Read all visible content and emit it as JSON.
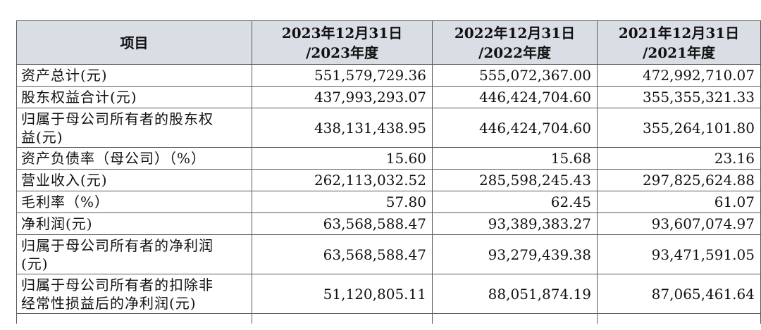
{
  "table": {
    "header": {
      "item": "项目",
      "col1_line1": "2023年12月31日",
      "col1_line2": "/2023年度",
      "col2_line1": "2022年12月31日",
      "col2_line2": "/2022年度",
      "col3_line1": "2021年12月31日",
      "col3_line2": "/2021年度"
    },
    "rows": [
      {
        "label": "资产总计(元)",
        "v2023": "551,579,729.36",
        "v2022": "555,072,367.00",
        "v2021": "472,992,710.07"
      },
      {
        "label": "股东权益合计(元)",
        "v2023": "437,993,293.07",
        "v2022": "446,424,704.60",
        "v2021": "355,355,321.33"
      },
      {
        "label_line1": "归属于母公司所有者的股东权",
        "label_line2": "益(元)",
        "v2023": "438,131,438.95",
        "v2022": "446,424,704.60",
        "v2021": "355,264,101.80"
      },
      {
        "label": "资产负债率（母公司）（%）",
        "v2023": "15.60",
        "v2022": "15.68",
        "v2021": "23.16"
      },
      {
        "label": "营业收入(元)",
        "v2023": "262,113,032.52",
        "v2022": "285,598,245.43",
        "v2021": "297,825,624.88"
      },
      {
        "label": "毛利率（%）",
        "v2023": "57.80",
        "v2022": "62.45",
        "v2021": "61.07"
      },
      {
        "label": "净利润(元)",
        "v2023": "63,568,588.47",
        "v2022": "93,389,383.27",
        "v2021": "93,607,074.97"
      },
      {
        "label_line1": "归属于母公司所有者的净利润",
        "label_line2": "(元)",
        "v2023": "63,568,588.47",
        "v2022": "93,279,439.38",
        "v2021": "93,471,591.05"
      },
      {
        "label_line1": "归属于母公司所有者的扣除非",
        "label_line2": "经常性损益后的净利润(元)",
        "v2023": "51,120,805.11",
        "v2022": "88,051,874.19",
        "v2021": "87,065,461.64"
      }
    ]
  }
}
